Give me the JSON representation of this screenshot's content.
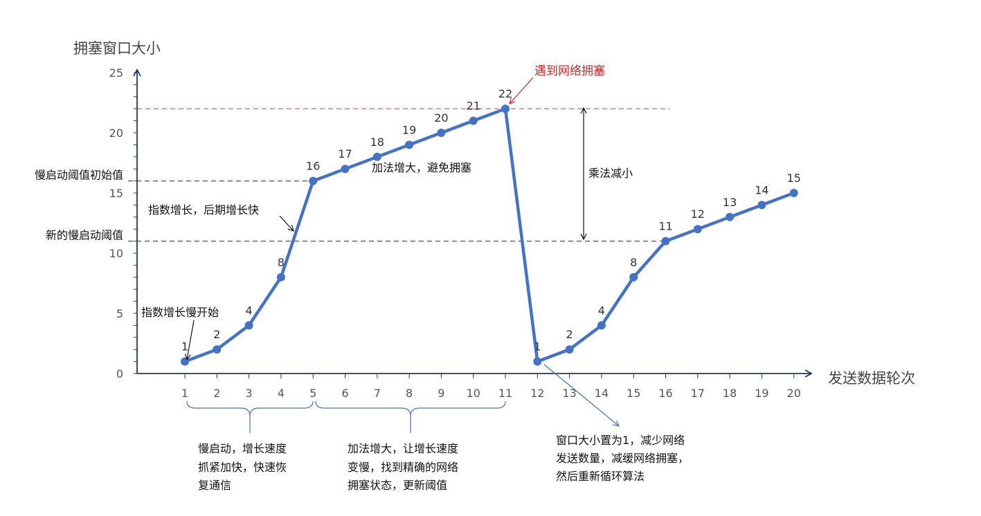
{
  "chart_data": {
    "type": "line",
    "title": "",
    "ylabel": "拥塞窗口大小",
    "xlabel": "发送数据轮次",
    "ylim": [
      0,
      25
    ],
    "y_ticks": [
      0,
      5,
      10,
      15,
      20,
      25
    ],
    "grid": false,
    "x_tick_labels": [
      "1",
      "2",
      "3",
      "4",
      "5",
      "6",
      "7",
      "8",
      "9",
      "10",
      "11",
      "12",
      "13",
      "14",
      "15",
      "16",
      "17",
      "18",
      "19",
      "20"
    ],
    "series": [
      {
        "x": [
          1,
          2,
          3,
          4,
          5,
          6,
          7,
          8,
          9,
          10,
          11,
          12,
          13,
          14,
          15,
          16,
          17,
          18,
          19,
          20
        ],
        "values": [
          1,
          2,
          4,
          8,
          16,
          17,
          18,
          19,
          20,
          21,
          22,
          1,
          2,
          4,
          8,
          11,
          12,
          13,
          14,
          15
        ],
        "color": "#4472c4"
      }
    ],
    "reference_lines": [
      {
        "y": 22,
        "color": "#e05050",
        "style": "dashed",
        "x_end": 20
      },
      {
        "y": 16,
        "color": "#555555",
        "style": "dashed",
        "label": "慢启动阈值初始值",
        "x_end": 5
      },
      {
        "y": 11,
        "color": "#555555",
        "style": "dashed",
        "label": "新的慢启动阈值",
        "x_end": 16
      }
    ]
  },
  "annotations": {
    "congestion": "遇到网络拥塞",
    "additive_increase": "加法增大，避免拥塞",
    "multiplicative_decrease": "乘法减小",
    "exp_growth_late": "指数增长，后期增长快",
    "exp_growth_start": "指数增长慢开始",
    "slow_start_desc": [
      "慢启动，增长速度",
      "抓紧加快，快速恢",
      "复通信"
    ],
    "additive_desc": [
      "加法增大，让增长速度",
      "变慢，找到精确的网络",
      "拥塞状态，更新阈值"
    ],
    "reset_desc": [
      "窗口大小置为1，减少网络",
      "发送数量，减缓网络拥塞，",
      "然后重新循环算法"
    ]
  }
}
